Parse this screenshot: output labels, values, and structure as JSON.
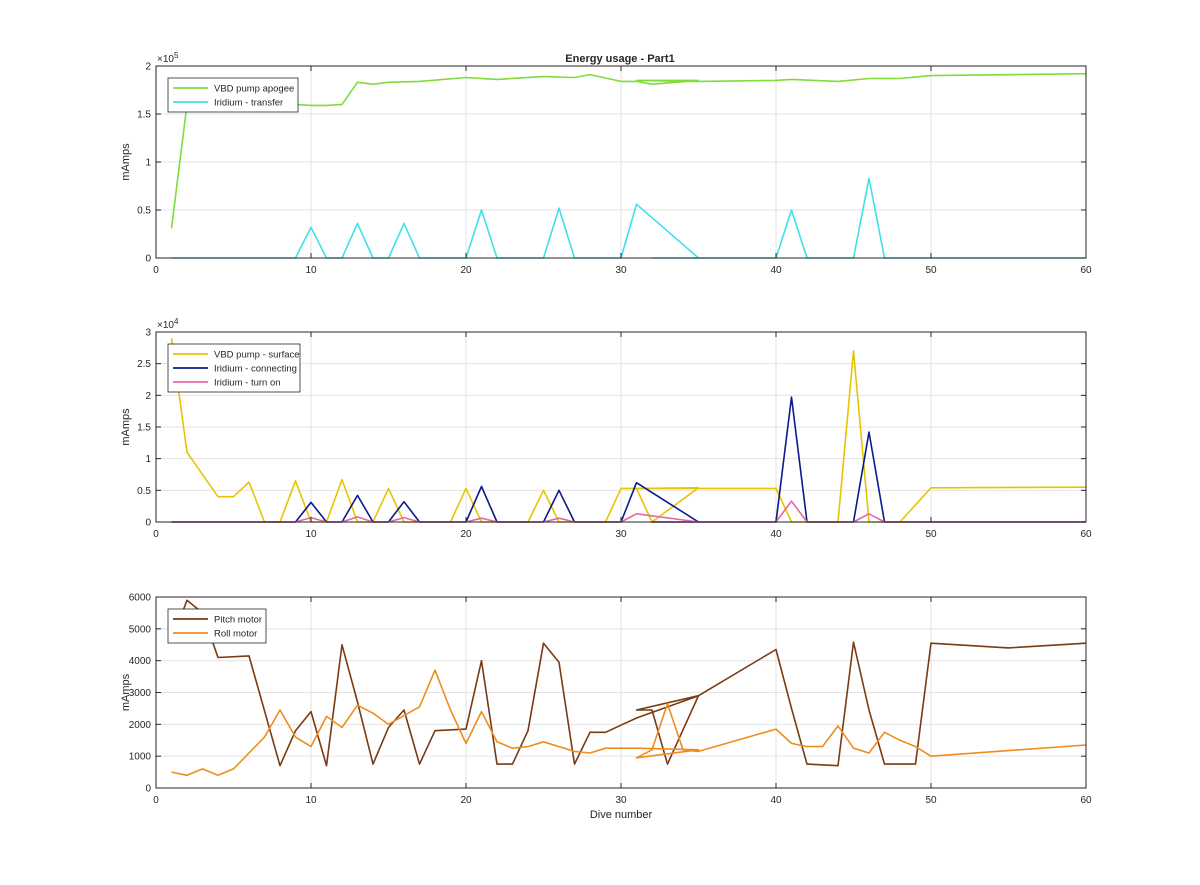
{
  "figure_title": "Energy usage - Part1",
  "chart_data": [
    {
      "type": "line",
      "title": "Energy usage - Part1",
      "xlabel": "",
      "ylabel": "mAmps",
      "xlim": [
        0,
        60
      ],
      "ylim": [
        0,
        200000
      ],
      "xticks": [
        0,
        10,
        20,
        30,
        40,
        50,
        60
      ],
      "xtick_labels": [
        "0",
        "10",
        "20",
        "30",
        "40",
        "50",
        "60"
      ],
      "yticks": [
        0,
        50000,
        100000,
        150000,
        200000
      ],
      "ytick_labels": [
        "0",
        "0.5",
        "1",
        "1.5",
        "2"
      ],
      "exponent_label": "×10",
      "exponent_power": "5",
      "grid": true,
      "legend_position": "top-left",
      "series": [
        {
          "name": "VBD pump apogee",
          "color": "#7fdc3a",
          "points": [
            [
              1,
              31000
            ],
            [
              2,
              160000
            ],
            [
              3,
              160000
            ],
            [
              9,
              160000
            ],
            [
              10,
              159000
            ],
            [
              11,
              159000
            ],
            [
              12,
              160000
            ],
            [
              13,
              183000
            ],
            [
              14,
              181000
            ],
            [
              15,
              183000
            ],
            [
              17,
              184000
            ],
            [
              20,
              188000
            ],
            [
              22,
              186000
            ],
            [
              25,
              189000
            ],
            [
              27,
              188000
            ],
            [
              28,
              191000
            ],
            [
              30,
              184000
            ],
            [
              31,
              184000
            ],
            [
              32,
              181000
            ],
            [
              35,
              185000
            ],
            [
              31,
              185000
            ],
            [
              35,
              184000
            ],
            [
              40,
              185000
            ],
            [
              41,
              186000
            ],
            [
              44,
              184000
            ],
            [
              46,
              187000
            ],
            [
              48,
              187000
            ],
            [
              50,
              190000
            ],
            [
              60,
              192000
            ]
          ]
        },
        {
          "name": "Iridium - transfer",
          "color": "#3fe0e8",
          "points": [
            [
              1,
              0
            ],
            [
              9,
              0
            ],
            [
              10,
              32000
            ],
            [
              11,
              0
            ],
            [
              12,
              0
            ],
            [
              13,
              36000
            ],
            [
              14,
              0
            ],
            [
              15,
              0
            ],
            [
              16,
              36000
            ],
            [
              17,
              0
            ],
            [
              20,
              0
            ],
            [
              21,
              50000
            ],
            [
              22,
              0
            ],
            [
              25,
              0
            ],
            [
              26,
              52000
            ],
            [
              27,
              0
            ],
            [
              30,
              0
            ],
            [
              31,
              56000
            ],
            [
              35,
              0
            ],
            [
              32,
              0
            ],
            [
              40,
              0
            ],
            [
              41,
              50000
            ],
            [
              42,
              0
            ],
            [
              45,
              0
            ],
            [
              46,
              83000
            ],
            [
              47,
              0
            ],
            [
              60,
              0
            ]
          ]
        }
      ]
    },
    {
      "type": "line",
      "title": "",
      "xlabel": "",
      "ylabel": "mAmps",
      "xlim": [
        0,
        60
      ],
      "ylim": [
        0,
        30000
      ],
      "xticks": [
        0,
        10,
        20,
        30,
        40,
        50,
        60
      ],
      "xtick_labels": [
        "0",
        "10",
        "20",
        "30",
        "40",
        "50",
        "60"
      ],
      "yticks": [
        0,
        5000,
        10000,
        15000,
        20000,
        25000,
        30000
      ],
      "ytick_labels": [
        "0",
        "0.5",
        "1",
        "1.5",
        "2",
        "2.5",
        "3"
      ],
      "exponent_label": "×10",
      "exponent_power": "4",
      "grid": true,
      "legend_position": "top-left",
      "series": [
        {
          "name": "VBD pump - surface",
          "color": "#e8c400",
          "points": [
            [
              1,
              29000
            ],
            [
              2,
              11000
            ],
            [
              4,
              4000
            ],
            [
              5,
              4000
            ],
            [
              6,
              6300
            ],
            [
              7,
              0
            ],
            [
              8,
              0
            ],
            [
              9,
              6500
            ],
            [
              10,
              0
            ],
            [
              11,
              0
            ],
            [
              12,
              6700
            ],
            [
              13,
              0
            ],
            [
              14,
              0
            ],
            [
              15,
              5300
            ],
            [
              16,
              0
            ],
            [
              19,
              0
            ],
            [
              20,
              5300
            ],
            [
              21,
              0
            ],
            [
              24,
              0
            ],
            [
              25,
              5000
            ],
            [
              26,
              0
            ],
            [
              29,
              0
            ],
            [
              30,
              5300
            ],
            [
              31,
              5300
            ],
            [
              32,
              0
            ],
            [
              35,
              5400
            ],
            [
              31,
              5300
            ],
            [
              35,
              5300
            ],
            [
              40,
              5300
            ],
            [
              41,
              0
            ],
            [
              44,
              0
            ],
            [
              45,
              27000
            ],
            [
              46,
              0
            ],
            [
              48,
              0
            ],
            [
              50,
              5400
            ],
            [
              60,
              5500
            ]
          ]
        },
        {
          "name": "Iridium - connecting",
          "color": "#0b1a8c",
          "points": [
            [
              1,
              0
            ],
            [
              9,
              0
            ],
            [
              10,
              3100
            ],
            [
              11,
              0
            ],
            [
              12,
              0
            ],
            [
              13,
              4200
            ],
            [
              14,
              0
            ],
            [
              15,
              0
            ],
            [
              16,
              3200
            ],
            [
              17,
              0
            ],
            [
              20,
              0
            ],
            [
              21,
              5600
            ],
            [
              22,
              0
            ],
            [
              25,
              0
            ],
            [
              26,
              5000
            ],
            [
              27,
              0
            ],
            [
              30,
              0
            ],
            [
              31,
              6200
            ],
            [
              35,
              0
            ],
            [
              32,
              0
            ],
            [
              40,
              0
            ],
            [
              41,
              19700
            ],
            [
              42,
              0
            ],
            [
              45,
              0
            ],
            [
              46,
              14200
            ],
            [
              47,
              0
            ],
            [
              60,
              0
            ]
          ]
        },
        {
          "name": "Iridium - turn on",
          "color": "#e06aa8",
          "points": [
            [
              1,
              0
            ],
            [
              9,
              0
            ],
            [
              10,
              700
            ],
            [
              11,
              0
            ],
            [
              12,
              0
            ],
            [
              13,
              800
            ],
            [
              14,
              0
            ],
            [
              15,
              0
            ],
            [
              16,
              700
            ],
            [
              17,
              0
            ],
            [
              20,
              0
            ],
            [
              21,
              600
            ],
            [
              22,
              0
            ],
            [
              25,
              0
            ],
            [
              26,
              600
            ],
            [
              27,
              0
            ],
            [
              30,
              0
            ],
            [
              31,
              1300
            ],
            [
              35,
              0
            ],
            [
              32,
              0
            ],
            [
              40,
              0
            ],
            [
              41,
              3300
            ],
            [
              42,
              0
            ],
            [
              45,
              0
            ],
            [
              46,
              1300
            ],
            [
              47,
              0
            ],
            [
              60,
              0
            ]
          ]
        }
      ]
    },
    {
      "type": "line",
      "title": "",
      "xlabel": "Dive number",
      "ylabel": "mAmps",
      "xlim": [
        0,
        60
      ],
      "ylim": [
        0,
        6000
      ],
      "xticks": [
        0,
        10,
        20,
        30,
        40,
        50,
        60
      ],
      "xtick_labels": [
        "0",
        "10",
        "20",
        "30",
        "40",
        "50",
        "60"
      ],
      "yticks": [
        0,
        1000,
        2000,
        3000,
        4000,
        5000,
        6000
      ],
      "ytick_labels": [
        "0",
        "1000",
        "2000",
        "3000",
        "4000",
        "5000",
        "6000"
      ],
      "grid": true,
      "legend_position": "top-left",
      "series": [
        {
          "name": "Pitch motor",
          "color": "#7a3a12",
          "points": [
            [
              1,
              4600
            ],
            [
              2,
              5900
            ],
            [
              3,
              5500
            ],
            [
              4,
              4100
            ],
            [
              6,
              4150
            ],
            [
              8,
              700
            ],
            [
              9,
              1800
            ],
            [
              10,
              2400
            ],
            [
              11,
              700
            ],
            [
              12,
              4500
            ],
            [
              13,
              2700
            ],
            [
              14,
              750
            ],
            [
              15,
              1900
            ],
            [
              16,
              2450
            ],
            [
              17,
              750
            ],
            [
              18,
              1800
            ],
            [
              20,
              1850
            ],
            [
              21,
              4000
            ],
            [
              22,
              750
            ],
            [
              23,
              750
            ],
            [
              24,
              1800
            ],
            [
              25,
              4550
            ],
            [
              26,
              3950
            ],
            [
              27,
              750
            ],
            [
              28,
              1750
            ],
            [
              29,
              1750
            ],
            [
              31,
              2200
            ],
            [
              35,
              2900
            ],
            [
              31,
              2450
            ],
            [
              32,
              2450
            ],
            [
              33,
              750
            ],
            [
              35,
              2900
            ],
            [
              40,
              4350
            ],
            [
              41,
              2500
            ],
            [
              42,
              750
            ],
            [
              44,
              700
            ],
            [
              45,
              4580
            ],
            [
              46,
              2450
            ],
            [
              47,
              750
            ],
            [
              49,
              750
            ],
            [
              50,
              4550
            ],
            [
              55,
              4400
            ],
            [
              60,
              4550
            ]
          ]
        },
        {
          "name": "Roll motor",
          "color": "#f08c1e",
          "points": [
            [
              1,
              500
            ],
            [
              2,
              400
            ],
            [
              3,
              600
            ],
            [
              4,
              400
            ],
            [
              5,
              600
            ],
            [
              6,
              1100
            ],
            [
              7,
              1600
            ],
            [
              8,
              2450
            ],
            [
              9,
              1600
            ],
            [
              10,
              1300
            ],
            [
              11,
              2250
            ],
            [
              12,
              1900
            ],
            [
              13,
              2600
            ],
            [
              14,
              2350
            ],
            [
              15,
              2000
            ],
            [
              17,
              2550
            ],
            [
              18,
              3700
            ],
            [
              19,
              2450
            ],
            [
              20,
              1400
            ],
            [
              21,
              2400
            ],
            [
              22,
              1450
            ],
            [
              23,
              1250
            ],
            [
              24,
              1300
            ],
            [
              25,
              1450
            ],
            [
              26,
              1300
            ],
            [
              27,
              1150
            ],
            [
              28,
              1100
            ],
            [
              29,
              1250
            ],
            [
              31,
              1250
            ],
            [
              35,
              1200
            ],
            [
              31,
              950
            ],
            [
              32,
              1200
            ],
            [
              33,
              2650
            ],
            [
              34,
              1200
            ],
            [
              35,
              1150
            ],
            [
              40,
              1850
            ],
            [
              41,
              1400
            ],
            [
              42,
              1300
            ],
            [
              43,
              1300
            ],
            [
              44,
              1950
            ],
            [
              45,
              1250
            ],
            [
              46,
              1100
            ],
            [
              47,
              1750
            ],
            [
              48,
              1500
            ],
            [
              49,
              1300
            ],
            [
              50,
              1000
            ],
            [
              60,
              1350
            ]
          ]
        }
      ]
    }
  ]
}
